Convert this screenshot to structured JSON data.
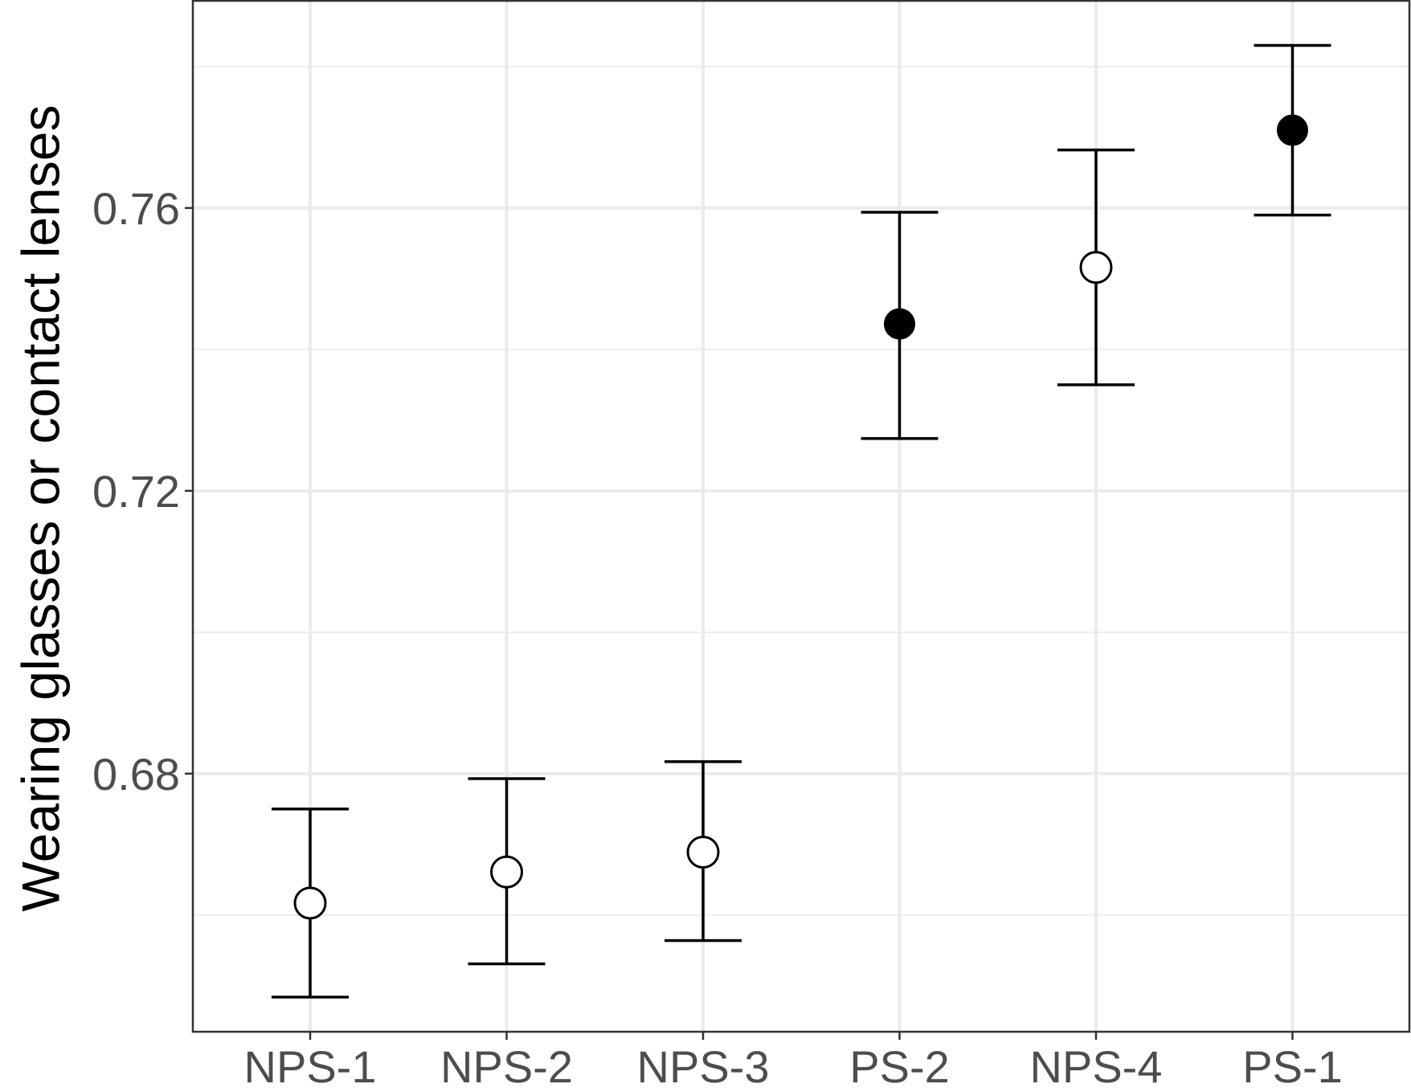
{
  "chart_data": {
    "type": "scatter",
    "subtype": "point-with-error-bars",
    "categories": [
      "NPS-1",
      "NPS-2",
      "NPS-3",
      "PS-2",
      "NPS-4",
      "PS-1"
    ],
    "points": [
      {
        "category": "NPS-1",
        "value": 0.6617,
        "lower": 0.6484,
        "upper": 0.675,
        "marker": "open"
      },
      {
        "category": "NPS-2",
        "value": 0.6661,
        "lower": 0.6531,
        "upper": 0.6793,
        "marker": "open"
      },
      {
        "category": "NPS-3",
        "value": 0.6689,
        "lower": 0.6564,
        "upper": 0.6817,
        "marker": "open"
      },
      {
        "category": "PS-2",
        "value": 0.7436,
        "lower": 0.7274,
        "upper": 0.7594,
        "marker": "filled"
      },
      {
        "category": "NPS-4",
        "value": 0.7516,
        "lower": 0.735,
        "upper": 0.7682,
        "marker": "open"
      },
      {
        "category": "PS-1",
        "value": 0.771,
        "lower": 0.759,
        "upper": 0.783,
        "marker": "filled"
      }
    ],
    "title": "",
    "xlabel": "",
    "ylabel": "Wearing glasses or contact lenses",
    "yticks": [
      0.68,
      0.72,
      0.76
    ],
    "ytick_labels": [
      "0.68",
      "0.72",
      "0.76"
    ],
    "ylim": [
      0.6435,
      0.7893
    ],
    "grid": true,
    "legend": "none",
    "colors": {
      "panel_border": "#333333",
      "grid": "#ebebeb",
      "marker": "#000000",
      "errorbar": "#000000",
      "tick_label": "#4d4d4d"
    }
  }
}
